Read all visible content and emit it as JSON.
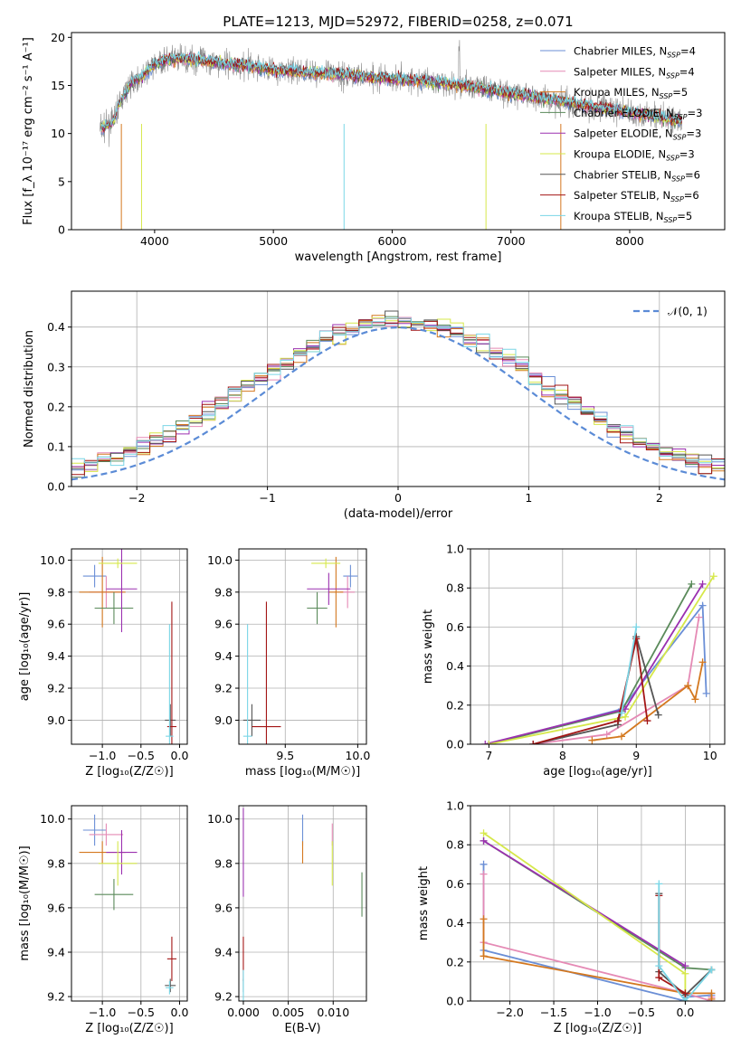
{
  "figure_title": "PLATE=1213, MJD=52972, FIBERID=0258, z=0.071",
  "colors": {
    "chabrier_miles": "#6b8fd6",
    "salpeter_miles": "#e58ab5",
    "kroupa_miles": "#d4781f",
    "chabrier_elodie": "#5a8a5a",
    "salpeter_elodie": "#9b30b0",
    "kroupa_elodie": "#d6e84a",
    "chabrier_stelib": "#555555",
    "salpeter_stelib": "#a31515",
    "kroupa_stelib": "#7ad6e6",
    "data": "#888888",
    "normal_curve": "#5b8bd6"
  },
  "chart_data": [
    {
      "id": "spectrum",
      "type": "line",
      "title": "PLATE=1213, MJD=52972, FIBERID=0258, z=0.071",
      "xlabel": "wavelength [Angstrom, rest frame]",
      "ylabel": "Flux [f_λ 10⁻¹⁷ erg cm⁻² s⁻¹ A⁻¹]",
      "xlim": [
        3300,
        8800
      ],
      "ylim": [
        0,
        20.5
      ],
      "xticks": [
        "4000",
        "5000",
        "6000",
        "7000",
        "8000"
      ],
      "xtick_values": [
        4000,
        5000,
        6000,
        7000,
        8000
      ],
      "yticks": [
        "0",
        "5",
        "10",
        "15",
        "20"
      ],
      "ytick_values": [
        0,
        5,
        10,
        15,
        20
      ],
      "grid": false,
      "legend_position": "top-right",
      "continuum": {
        "x": [
          3550,
          3650,
          3700,
          3800,
          3900,
          4000,
          4100,
          4200,
          4400,
          4600,
          4800,
          5000,
          5200,
          5400,
          5600,
          5800,
          6000,
          6200,
          6400,
          6600,
          6800,
          7000,
          7200,
          7400,
          7600,
          7800,
          8000,
          8200,
          8400
        ],
        "y": [
          10.5,
          11.2,
          13.0,
          15.3,
          16.0,
          17.2,
          17.6,
          17.8,
          17.6,
          17.3,
          17.0,
          16.6,
          16.4,
          16.3,
          16.1,
          15.9,
          15.7,
          15.5,
          15.3,
          15.0,
          14.6,
          14.2,
          13.8,
          13.4,
          13.0,
          12.6,
          12.2,
          11.8,
          11.4
        ]
      },
      "series": [
        {
          "name": "Chabrier MILES",
          "nssp": "4",
          "color_key": "chabrier_miles"
        },
        {
          "name": "Salpeter MILES",
          "nssp": "4",
          "color_key": "salpeter_miles"
        },
        {
          "name": "Kroupa MILES",
          "nssp": "5",
          "color_key": "kroupa_miles"
        },
        {
          "name": "Chabrier ELODIE",
          "nssp": "3",
          "color_key": "chabrier_elodie"
        },
        {
          "name": "Salpeter ELODIE",
          "nssp": "3",
          "color_key": "salpeter_elodie"
        },
        {
          "name": "Kroupa ELODIE",
          "nssp": "3",
          "color_key": "kroupa_elodie"
        },
        {
          "name": "Chabrier STELIB",
          "nssp": "6",
          "color_key": "chabrier_stelib"
        },
        {
          "name": "Salpeter STELIB",
          "nssp": "6",
          "color_key": "salpeter_stelib"
        },
        {
          "name": "Kroupa STELIB",
          "nssp": "5",
          "color_key": "kroupa_stelib"
        }
      ]
    },
    {
      "id": "residuals",
      "type": "line",
      "xlabel": "(data-model)/error",
      "ylabel": "Normed distribution",
      "xlim": [
        -2.5,
        2.5
      ],
      "ylim": [
        0,
        0.49
      ],
      "xticks": [
        "−2",
        "−1",
        "0",
        "1",
        "2"
      ],
      "xtick_values": [
        -2,
        -1,
        0,
        1,
        2
      ],
      "yticks": [
        "0.0",
        "0.1",
        "0.2",
        "0.3",
        "0.4"
      ],
      "ytick_values": [
        0,
        0.1,
        0.2,
        0.3,
        0.4
      ],
      "grid": true,
      "legend_position": "top-right",
      "legend_label": "𝒩(0, 1)",
      "bin_edges_start": -2.5,
      "bin_width": 0.1,
      "n_bins": 50
    },
    {
      "id": "age_vs_Z",
      "type": "scatter",
      "xlabel": "Z [log₁₀(Z/Z☉)]",
      "ylabel": "age  [log₁₀(age/yr)]",
      "xlim": [
        -1.4,
        0.1
      ],
      "ylim": [
        8.85,
        10.07
      ],
      "xticks": [
        "−1.0",
        "−0.5",
        "0.0"
      ],
      "xtick_values": [
        -1.0,
        -0.5,
        0.0
      ],
      "yticks": [
        "9.0",
        "9.2",
        "9.4",
        "9.6",
        "9.8",
        "10.0"
      ],
      "ytick_values": [
        9.0,
        9.2,
        9.4,
        9.6,
        9.8,
        10.0
      ],
      "grid": true,
      "points": [
        {
          "c": "chabrier_miles",
          "x": -1.1,
          "y": 9.9,
          "xe": 0.15,
          "ye": 0.07
        },
        {
          "c": "salpeter_miles",
          "x": -0.95,
          "y": 9.8,
          "xe": 0.22,
          "ye": 0.1
        },
        {
          "c": "kroupa_miles",
          "x": -1.0,
          "y": 9.8,
          "xe": 0.3,
          "ye": 0.22
        },
        {
          "c": "chabrier_elodie",
          "x": -0.85,
          "y": 9.7,
          "xe": 0.25,
          "ye": 0.1
        },
        {
          "c": "salpeter_elodie",
          "x": -0.75,
          "y": 9.82,
          "xe": 0.2,
          "ye": 0.27
        },
        {
          "c": "kroupa_elodie",
          "x": -0.8,
          "y": 9.98,
          "xe": 0.25,
          "ye": 0.03
        },
        {
          "c": "chabrier_stelib",
          "x": -0.12,
          "y": 9.0,
          "xe": 0.07,
          "ye": 0.1
        },
        {
          "c": "salpeter_stelib",
          "x": -0.1,
          "y": 8.96,
          "xe": 0.06,
          "ye": 0.78
        },
        {
          "c": "kroupa_stelib",
          "x": -0.13,
          "y": 8.9,
          "xe": 0.05,
          "ye": 0.7
        }
      ]
    },
    {
      "id": "age_vs_mass",
      "type": "scatter",
      "xlabel": "mass [log₁₀(M/M☉)]",
      "ylabel": "",
      "xlim": [
        9.18,
        10.06
      ],
      "ylim": [
        8.85,
        10.07
      ],
      "xticks": [
        "9.5",
        "10.0"
      ],
      "xtick_values": [
        9.5,
        10.0
      ],
      "yticks": [
        "9.0",
        "9.2",
        "9.4",
        "9.6",
        "9.8",
        "10.0"
      ],
      "ytick_values": [
        9.0,
        9.2,
        9.4,
        9.6,
        9.8,
        10.0
      ],
      "grid": true,
      "points": [
        {
          "c": "chabrier_miles",
          "x": 9.95,
          "y": 9.9,
          "xe": 0.05,
          "ye": 0.07
        },
        {
          "c": "salpeter_miles",
          "x": 9.93,
          "y": 9.8,
          "xe": 0.05,
          "ye": 0.1
        },
        {
          "c": "kroupa_miles",
          "x": 9.85,
          "y": 9.8,
          "xe": 0.05,
          "ye": 0.22
        },
        {
          "c": "chabrier_elodie",
          "x": 9.72,
          "y": 9.7,
          "xe": 0.07,
          "ye": 0.1
        },
        {
          "c": "salpeter_elodie",
          "x": 9.8,
          "y": 9.82,
          "xe": 0.15,
          "ye": 0.1
        },
        {
          "c": "kroupa_elodie",
          "x": 9.78,
          "y": 9.98,
          "xe": 0.1,
          "ye": 0.03
        },
        {
          "c": "chabrier_stelib",
          "x": 9.27,
          "y": 9.0,
          "xe": 0.06,
          "ye": 0.1
        },
        {
          "c": "salpeter_stelib",
          "x": 9.37,
          "y": 8.96,
          "xe": 0.1,
          "ye": 0.78
        },
        {
          "c": "kroupa_stelib",
          "x": 9.24,
          "y": 8.9,
          "xe": 0.03,
          "ye": 0.7
        }
      ]
    },
    {
      "id": "massweight_vs_age",
      "type": "line",
      "xlabel": "age  [log₁₀(age/yr)]",
      "ylabel": "mass weight",
      "xlim": [
        6.75,
        10.2
      ],
      "ylim": [
        0,
        1.0
      ],
      "xticks": [
        "7",
        "8",
        "9",
        "10"
      ],
      "xtick_values": [
        7,
        8,
        9,
        10
      ],
      "yticks": [
        "0.0",
        "0.2",
        "0.4",
        "0.6",
        "0.8",
        "1.0"
      ],
      "ytick_values": [
        0,
        0.2,
        0.4,
        0.6,
        0.8,
        1.0
      ],
      "grid": true,
      "series": [
        {
          "c": "chabrier_miles",
          "x": [
            7.0,
            8.8,
            9.9,
            9.95
          ],
          "y": [
            0.0,
            0.18,
            0.71,
            0.26
          ]
        },
        {
          "c": "salpeter_miles",
          "x": [
            7.6,
            8.6,
            9.7,
            9.85
          ],
          "y": [
            0.0,
            0.05,
            0.3,
            0.65
          ]
        },
        {
          "c": "kroupa_miles",
          "x": [
            8.4,
            8.8,
            9.7,
            9.8,
            9.9
          ],
          "y": [
            0.02,
            0.04,
            0.3,
            0.23,
            0.42
          ]
        },
        {
          "c": "chabrier_elodie",
          "x": [
            7.0,
            8.8,
            9.75
          ],
          "y": [
            0.0,
            0.17,
            0.82
          ]
        },
        {
          "c": "salpeter_elodie",
          "x": [
            6.95,
            8.85,
            9.9
          ],
          "y": [
            0.0,
            0.18,
            0.82
          ]
        },
        {
          "c": "kroupa_elodie",
          "x": [
            7.0,
            8.85,
            10.05
          ],
          "y": [
            0.0,
            0.14,
            0.86
          ]
        },
        {
          "c": "chabrier_stelib",
          "x": [
            7.6,
            8.75,
            9.0,
            9.3
          ],
          "y": [
            0.0,
            0.1,
            0.55,
            0.15
          ]
        },
        {
          "c": "salpeter_stelib",
          "x": [
            7.6,
            8.75,
            9.0,
            9.15
          ],
          "y": [
            0.0,
            0.12,
            0.54,
            0.12
          ]
        },
        {
          "c": "kroupa_stelib",
          "x": [
            8.8,
            9.0
          ],
          "y": [
            0.16,
            0.6
          ]
        }
      ]
    },
    {
      "id": "mass_vs_Z",
      "type": "scatter",
      "xlabel": "Z [log₁₀(Z/Z☉)]",
      "ylabel": "mass [log₁₀(M/M☉)]",
      "xlim": [
        -1.4,
        0.1
      ],
      "ylim": [
        9.18,
        10.06
      ],
      "xticks": [
        "−1.0",
        "−0.5",
        "0.0"
      ],
      "xtick_values": [
        -1.0,
        -0.5,
        0.0
      ],
      "yticks": [
        "9.2",
        "9.4",
        "9.6",
        "9.8",
        "10.0"
      ],
      "ytick_values": [
        9.2,
        9.4,
        9.6,
        9.8,
        10.0
      ],
      "grid": true,
      "points": [
        {
          "c": "chabrier_miles",
          "x": -1.1,
          "y": 9.95,
          "xe": 0.15,
          "ye": 0.07
        },
        {
          "c": "salpeter_miles",
          "x": -0.95,
          "y": 9.93,
          "xe": 0.22,
          "ye": 0.05
        },
        {
          "c": "kroupa_miles",
          "x": -1.0,
          "y": 9.85,
          "xe": 0.3,
          "ye": 0.05
        },
        {
          "c": "chabrier_elodie",
          "x": -0.85,
          "y": 9.66,
          "xe": 0.25,
          "ye": 0.07
        },
        {
          "c": "salpeter_elodie",
          "x": -0.75,
          "y": 9.85,
          "xe": 0.2,
          "ye": 0.1
        },
        {
          "c": "kroupa_elodie",
          "x": -0.8,
          "y": 9.8,
          "xe": 0.25,
          "ye": 0.1
        },
        {
          "c": "chabrier_stelib",
          "x": -0.12,
          "y": 9.25,
          "xe": 0.07,
          "ye": 0.03
        },
        {
          "c": "salpeter_stelib",
          "x": -0.1,
          "y": 9.37,
          "xe": 0.06,
          "ye": 0.1
        },
        {
          "c": "kroupa_stelib",
          "x": -0.13,
          "y": 9.24,
          "xe": 0.05,
          "ye": 0.03
        }
      ]
    },
    {
      "id": "mass_vs_ebv",
      "type": "scatter",
      "xlabel": "E(B-V)",
      "ylabel": "",
      "xlim": [
        -0.0005,
        0.0137
      ],
      "ylim": [
        9.18,
        10.06
      ],
      "xticks": [
        "0.000",
        "0.005",
        "0.010"
      ],
      "xtick_values": [
        0.0,
        0.005,
        0.01
      ],
      "yticks": [
        "9.2",
        "9.4",
        "9.6",
        "9.8",
        "10.0"
      ],
      "ytick_values": [
        9.2,
        9.4,
        9.6,
        9.8,
        10.0
      ],
      "grid": true,
      "points": [
        {
          "c": "chabrier_miles",
          "x": 0.0066,
          "y": 9.95,
          "xe": 0.0,
          "ye": 0.07
        },
        {
          "c": "salpeter_miles",
          "x": 0.0099,
          "y": 9.93,
          "xe": 0.0,
          "ye": 0.05
        },
        {
          "c": "kroupa_miles",
          "x": 0.0066,
          "y": 9.85,
          "xe": 0.0,
          "ye": 0.05
        },
        {
          "c": "chabrier_elodie",
          "x": 0.0132,
          "y": 9.66,
          "xe": 0.0,
          "ye": 0.1
        },
        {
          "c": "salpeter_elodie",
          "x": 0.0,
          "y": 9.85,
          "xe": 0.0,
          "ye": 0.2
        },
        {
          "c": "kroupa_elodie",
          "x": 0.0099,
          "y": 9.8,
          "xe": 0.0,
          "ye": 0.1
        },
        {
          "c": "chabrier_stelib",
          "x": 0.0,
          "y": 9.25,
          "xe": 0.0,
          "ye": 0.03
        },
        {
          "c": "salpeter_stelib",
          "x": 0.0,
          "y": 9.37,
          "xe": 0.0,
          "ye": 0.1
        },
        {
          "c": "kroupa_stelib",
          "x": 0.0,
          "y": 9.24,
          "xe": 0.0,
          "ye": 0.08
        }
      ]
    },
    {
      "id": "massweight_vs_Z",
      "type": "line",
      "xlabel": "Z [log₁₀(Z/Z☉)]",
      "ylabel": "mass weight",
      "xlim": [
        -2.45,
        0.45
      ],
      "ylim": [
        0,
        1.0
      ],
      "xticks": [
        "−2.0",
        "−1.5",
        "−1.0",
        "−0.5",
        "0.0"
      ],
      "xtick_values": [
        -2.0,
        -1.5,
        -1.0,
        -0.5,
        0.0
      ],
      "yticks": [
        "0.0",
        "0.2",
        "0.4",
        "0.6",
        "0.8",
        "1.0"
      ],
      "ytick_values": [
        0,
        0.2,
        0.4,
        0.6,
        0.8,
        1.0
      ],
      "grid": true,
      "series": [
        {
          "c": "chabrier_miles",
          "x": [
            -2.3,
            -2.3,
            0.0,
            0.0,
            0.3
          ],
          "y": [
            0.7,
            0.26,
            0.0,
            0.02,
            0.03
          ]
        },
        {
          "c": "salpeter_miles",
          "x": [
            -2.3,
            -2.3,
            0.0,
            0.3,
            0.3
          ],
          "y": [
            0.65,
            0.3,
            0.04,
            0.0,
            0.02
          ]
        },
        {
          "c": "kroupa_miles",
          "x": [
            -2.3,
            -2.3,
            0.0,
            0.3,
            0.3
          ],
          "y": [
            0.42,
            0.23,
            0.04,
            0.04,
            0.01
          ]
        },
        {
          "c": "chabrier_elodie",
          "x": [
            -2.3,
            0.0,
            0.3
          ],
          "y": [
            0.82,
            0.17,
            0.16
          ]
        },
        {
          "c": "salpeter_elodie",
          "x": [
            -2.3,
            0.0
          ],
          "y": [
            0.82,
            0.18
          ]
        },
        {
          "c": "kroupa_elodie",
          "x": [
            -2.3,
            0.0,
            0.0
          ],
          "y": [
            0.86,
            0.14,
            0.0
          ]
        },
        {
          "c": "chabrier_stelib",
          "x": [
            -0.3,
            -0.3,
            0.0,
            0.3
          ],
          "y": [
            0.55,
            0.15,
            0.03,
            0.16
          ]
        },
        {
          "c": "salpeter_stelib",
          "x": [
            -0.3,
            -0.3,
            0.0
          ],
          "y": [
            0.54,
            0.12,
            0.04
          ]
        },
        {
          "c": "kroupa_stelib",
          "x": [
            -0.3,
            -0.3,
            0.0,
            0.3
          ],
          "y": [
            0.6,
            0.18,
            0.0,
            0.16
          ]
        }
      ]
    }
  ]
}
